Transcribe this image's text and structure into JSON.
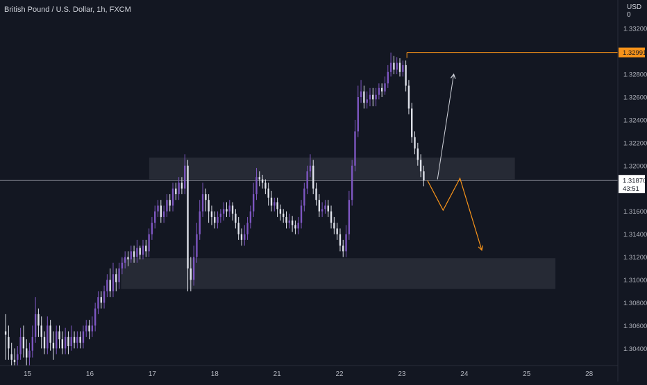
{
  "title": "British Pound / U.S. Dollar, 1h, FXCM",
  "currency": "USD",
  "currency_suffix": "0",
  "colors": {
    "background": "#131722",
    "bull": "#7e57c2",
    "bear": "#e0e3eb",
    "orange": "#f7931a",
    "grid_text": "#b2b5be",
    "zone": "#363a45"
  },
  "price_tag": {
    "high": "1.32991",
    "last": "1.31870",
    "countdown": "43:51"
  },
  "chart_data": {
    "type": "candlestick",
    "ylim": [
      1.3025,
      1.3345
    ],
    "y_ticks": [
      "1.33200",
      "1.32800",
      "1.32600",
      "1.32400",
      "1.32200",
      "1.32000",
      "1.31600",
      "1.31400",
      "1.31200",
      "1.31000",
      "1.30800",
      "1.30600",
      "1.30400"
    ],
    "y_tick_values": [
      1.332,
      1.328,
      1.326,
      1.324,
      1.322,
      1.32,
      1.316,
      1.314,
      1.312,
      1.31,
      1.308,
      1.306,
      1.304
    ],
    "x_ticks": [
      "15",
      "16",
      "17",
      "18",
      "21",
      "22",
      "23",
      "24",
      "25",
      "28"
    ],
    "x_tick_days": [
      1,
      2,
      3,
      4,
      5,
      6,
      7,
      8,
      9,
      10
    ],
    "x_range_days": [
      0.56,
      10.46
    ],
    "high_line_price": 1.32991,
    "last_price": 1.3187,
    "zones": [
      {
        "name": "resistance-zone",
        "day_start": 2.95,
        "day_end": 8.81,
        "price_top": 1.3207,
        "price_bottom": 1.3188
      },
      {
        "name": "support-zone",
        "day_start": 2.5,
        "day_end": 9.46,
        "price_top": 1.3119,
        "price_bottom": 1.3092
      }
    ],
    "projection_up": [
      [
        7.57,
        1.3188
      ],
      [
        7.83,
        1.328
      ]
    ],
    "projection_down": [
      [
        7.41,
        1.3187
      ],
      [
        7.66,
        1.3161
      ],
      [
        7.93,
        1.3189
      ],
      [
        8.28,
        1.3126
      ]
    ],
    "candles": [
      [
        1.3055,
        1.3052,
        1.307,
        1.303
      ],
      [
        1.305,
        1.304,
        1.306,
        1.303
      ],
      [
        1.3035,
        1.303,
        1.3045,
        1.3025
      ],
      [
        1.303,
        1.3028,
        1.304,
        1.3025
      ],
      [
        1.303,
        1.3035,
        1.3042,
        1.3025
      ],
      [
        1.3035,
        1.305,
        1.3058,
        1.303
      ],
      [
        1.305,
        1.304,
        1.306,
        1.3032
      ],
      [
        1.304,
        1.3032,
        1.3048,
        1.3025
      ],
      [
        1.3032,
        1.3038,
        1.3045,
        1.3025
      ],
      [
        1.3038,
        1.305,
        1.306,
        1.3032
      ],
      [
        1.305,
        1.307,
        1.3085,
        1.3045
      ],
      [
        1.307,
        1.306,
        1.3075,
        1.305
      ],
      [
        1.306,
        1.305,
        1.3068,
        1.304
      ],
      [
        1.305,
        1.304,
        1.3055,
        1.3035
      ],
      [
        1.304,
        1.306,
        1.3068,
        1.3035
      ],
      [
        1.306,
        1.3045,
        1.3065,
        1.3038
      ],
      [
        1.3045,
        1.304,
        1.3055,
        1.303
      ],
      [
        1.304,
        1.3055,
        1.306,
        1.3035
      ],
      [
        1.3055,
        1.3048,
        1.306,
        1.304
      ],
      [
        1.3048,
        1.304,
        1.3055,
        1.3035
      ],
      [
        1.304,
        1.305,
        1.3058,
        1.3035
      ],
      [
        1.305,
        1.3042,
        1.3055,
        1.3035
      ],
      [
        1.3042,
        1.305,
        1.306,
        1.3038
      ],
      [
        1.305,
        1.3045,
        1.3055,
        1.304
      ],
      [
        1.3045,
        1.305,
        1.3055,
        1.304
      ],
      [
        1.305,
        1.3045,
        1.3055,
        1.304
      ],
      [
        1.3045,
        1.3055,
        1.306,
        1.304
      ],
      [
        1.3055,
        1.306,
        1.3065,
        1.305
      ],
      [
        1.306,
        1.3055,
        1.3065,
        1.3048
      ],
      [
        1.3055,
        1.306,
        1.3068,
        1.305
      ],
      [
        1.306,
        1.3075,
        1.308,
        1.3055
      ],
      [
        1.3075,
        1.3085,
        1.309,
        1.307
      ],
      [
        1.3085,
        1.308,
        1.309,
        1.3075
      ],
      [
        1.308,
        1.309,
        1.3095,
        1.3075
      ],
      [
        1.309,
        1.31,
        1.3105,
        1.3085
      ],
      [
        1.31,
        1.309,
        1.311,
        1.3085
      ],
      [
        1.309,
        1.3105,
        1.3115,
        1.3085
      ],
      [
        1.3105,
        1.3098,
        1.311,
        1.309
      ],
      [
        1.3098,
        1.311,
        1.3115,
        1.3092
      ],
      [
        1.311,
        1.3115,
        1.312,
        1.3105
      ],
      [
        1.3115,
        1.312,
        1.3125,
        1.311
      ],
      [
        1.312,
        1.3118,
        1.3125,
        1.3112
      ],
      [
        1.3118,
        1.3125,
        1.313,
        1.3115
      ],
      [
        1.3125,
        1.312,
        1.313,
        1.3115
      ],
      [
        1.312,
        1.3128,
        1.3135,
        1.3115
      ],
      [
        1.3128,
        1.3122,
        1.313,
        1.3118
      ],
      [
        1.3122,
        1.313,
        1.3135,
        1.3118
      ],
      [
        1.313,
        1.3125,
        1.3135,
        1.312
      ],
      [
        1.3125,
        1.314,
        1.3145,
        1.312
      ],
      [
        1.314,
        1.315,
        1.3155,
        1.3135
      ],
      [
        1.315,
        1.316,
        1.3165,
        1.3145
      ],
      [
        1.316,
        1.3165,
        1.317,
        1.3155
      ],
      [
        1.3165,
        1.3155,
        1.317,
        1.315
      ],
      [
        1.3155,
        1.316,
        1.3165,
        1.315
      ],
      [
        1.316,
        1.317,
        1.3175,
        1.3155
      ],
      [
        1.317,
        1.3165,
        1.3175,
        1.316
      ],
      [
        1.3165,
        1.318,
        1.3185,
        1.316
      ],
      [
        1.318,
        1.3175,
        1.3185,
        1.317
      ],
      [
        1.3175,
        1.3185,
        1.319,
        1.317
      ],
      [
        1.3185,
        1.318,
        1.319,
        1.3175
      ],
      [
        1.318,
        1.32,
        1.321,
        1.3175
      ],
      [
        1.32,
        1.311,
        1.3205,
        1.309
      ],
      [
        1.311,
        1.31,
        1.312,
        1.309
      ],
      [
        1.31,
        1.312,
        1.313,
        1.3095
      ],
      [
        1.312,
        1.314,
        1.315,
        1.3115
      ],
      [
        1.314,
        1.316,
        1.317,
        1.3135
      ],
      [
        1.316,
        1.3175,
        1.3185,
        1.3155
      ],
      [
        1.3175,
        1.317,
        1.318,
        1.316
      ],
      [
        1.317,
        1.316,
        1.3175,
        1.315
      ],
      [
        1.316,
        1.3155,
        1.3165,
        1.3148
      ],
      [
        1.3155,
        1.315,
        1.316,
        1.3145
      ],
      [
        1.315,
        1.3155,
        1.316,
        1.3145
      ],
      [
        1.3155,
        1.3158,
        1.3162,
        1.315
      ],
      [
        1.3158,
        1.3162,
        1.3168,
        1.3152
      ],
      [
        1.3162,
        1.316,
        1.3168,
        1.3155
      ],
      [
        1.316,
        1.3165,
        1.317,
        1.3155
      ],
      [
        1.3165,
        1.3158,
        1.3168,
        1.3152
      ],
      [
        1.3158,
        1.315,
        1.3162,
        1.3145
      ],
      [
        1.315,
        1.314,
        1.3155,
        1.3135
      ],
      [
        1.314,
        1.3135,
        1.3145,
        1.313
      ],
      [
        1.3135,
        1.314,
        1.3148,
        1.313
      ],
      [
        1.314,
        1.315,
        1.3155,
        1.3135
      ],
      [
        1.315,
        1.316,
        1.3165,
        1.3145
      ],
      [
        1.316,
        1.3175,
        1.3185,
        1.3155
      ],
      [
        1.3175,
        1.319,
        1.3198,
        1.317
      ],
      [
        1.319,
        1.3188,
        1.3195,
        1.3182
      ],
      [
        1.3188,
        1.3185,
        1.3192,
        1.318
      ],
      [
        1.3185,
        1.318,
        1.3188,
        1.3175
      ],
      [
        1.318,
        1.3172,
        1.3185,
        1.3165
      ],
      [
        1.3172,
        1.3165,
        1.3178,
        1.316
      ],
      [
        1.3165,
        1.3168,
        1.3172,
        1.316
      ],
      [
        1.3168,
        1.3162,
        1.3172,
        1.3155
      ],
      [
        1.3162,
        1.3158,
        1.3166,
        1.3152
      ],
      [
        1.3158,
        1.3155,
        1.3162,
        1.315
      ],
      [
        1.3155,
        1.315,
        1.316,
        1.3145
      ],
      [
        1.315,
        1.3152,
        1.3158,
        1.3145
      ],
      [
        1.3152,
        1.3148,
        1.3156,
        1.3142
      ],
      [
        1.3148,
        1.3145,
        1.3152,
        1.314
      ],
      [
        1.3145,
        1.315,
        1.3155,
        1.314
      ],
      [
        1.315,
        1.3165,
        1.317,
        1.3145
      ],
      [
        1.3165,
        1.318,
        1.3185,
        1.316
      ],
      [
        1.318,
        1.3195,
        1.32,
        1.3175
      ],
      [
        1.3195,
        1.32,
        1.321,
        1.319
      ],
      [
        1.32,
        1.318,
        1.3205,
        1.3175
      ],
      [
        1.318,
        1.317,
        1.3185,
        1.3165
      ],
      [
        1.317,
        1.316,
        1.3175,
        1.3155
      ],
      [
        1.316,
        1.3162,
        1.3168,
        1.3155
      ],
      [
        1.3162,
        1.3165,
        1.317,
        1.3158
      ],
      [
        1.3165,
        1.316,
        1.317,
        1.3155
      ],
      [
        1.316,
        1.315,
        1.3165,
        1.3145
      ],
      [
        1.315,
        1.3145,
        1.3155,
        1.314
      ],
      [
        1.3145,
        1.314,
        1.315,
        1.3135
      ],
      [
        1.314,
        1.313,
        1.3145,
        1.3125
      ],
      [
        1.313,
        1.3125,
        1.3135,
        1.312
      ],
      [
        1.3125,
        1.314,
        1.3148,
        1.312
      ],
      [
        1.314,
        1.317,
        1.3178,
        1.3135
      ],
      [
        1.317,
        1.32,
        1.3205,
        1.3165
      ],
      [
        1.32,
        1.323,
        1.324,
        1.3195
      ],
      [
        1.323,
        1.326,
        1.327,
        1.3225
      ],
      [
        1.326,
        1.3265,
        1.3275,
        1.3255
      ],
      [
        1.3265,
        1.3255,
        1.327,
        1.325
      ],
      [
        1.3255,
        1.3258,
        1.3265,
        1.325
      ],
      [
        1.3258,
        1.3262,
        1.3268,
        1.3252
      ],
      [
        1.3262,
        1.3258,
        1.3268,
        1.3252
      ],
      [
        1.3258,
        1.3262,
        1.3268,
        1.3252
      ],
      [
        1.3262,
        1.3268,
        1.3272,
        1.3258
      ],
      [
        1.3268,
        1.3265,
        1.3272,
        1.326
      ],
      [
        1.3265,
        1.3272,
        1.3278,
        1.3262
      ],
      [
        1.3272,
        1.3282,
        1.3288,
        1.3268
      ],
      [
        1.3282,
        1.329,
        1.3299,
        1.3278
      ],
      [
        1.329,
        1.3284,
        1.3296,
        1.328
      ],
      [
        1.3284,
        1.329,
        1.3295,
        1.328
      ],
      [
        1.329,
        1.3282,
        1.3294,
        1.3278
      ],
      [
        1.3282,
        1.3288,
        1.3292,
        1.3278
      ],
      [
        1.3288,
        1.327,
        1.3292,
        1.3265
      ],
      [
        1.327,
        1.325,
        1.3275,
        1.3245
      ],
      [
        1.325,
        1.3225,
        1.3255,
        1.322
      ],
      [
        1.3225,
        1.3215,
        1.323,
        1.321
      ],
      [
        1.3215,
        1.3205,
        1.322,
        1.32
      ],
      [
        1.3205,
        1.3195,
        1.321,
        1.319
      ],
      [
        1.3195,
        1.3187,
        1.32,
        1.3182
      ]
    ]
  }
}
